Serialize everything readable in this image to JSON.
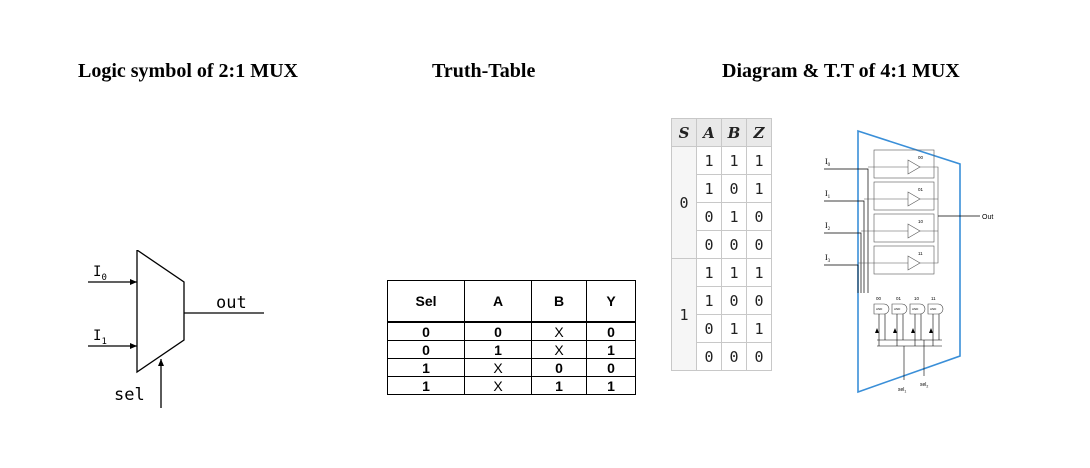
{
  "titles": {
    "logic_symbol": "Logic symbol of 2:1 MUX",
    "truth_table": "Truth-Table",
    "diagram_4to1": "Diagram & T.T of 4:1 MUX"
  },
  "mux21": {
    "input0": "I",
    "input0_sub": "0",
    "input1": "I",
    "input1_sub": "1",
    "select": "sel",
    "output": "out"
  },
  "truth_table_2to1": {
    "headers": [
      "Sel",
      "A",
      "B",
      "Y"
    ],
    "rows": [
      [
        "0",
        "0",
        "X",
        "0"
      ],
      [
        "0",
        "1",
        "X",
        "1"
      ],
      [
        "1",
        "X",
        "0",
        "0"
      ],
      [
        "1",
        "X",
        "1",
        "1"
      ]
    ]
  },
  "truth_table_4to1": {
    "headers": [
      "S",
      "A",
      "B",
      "Z"
    ],
    "groups": [
      {
        "s": "0",
        "rows": [
          [
            "1",
            "1",
            "1"
          ],
          [
            "1",
            "0",
            "1"
          ],
          [
            "0",
            "1",
            "0"
          ],
          [
            "0",
            "0",
            "0"
          ]
        ]
      },
      {
        "s": "1",
        "rows": [
          [
            "1",
            "1",
            "1"
          ],
          [
            "1",
            "0",
            "0"
          ],
          [
            "0",
            "1",
            "1"
          ],
          [
            "0",
            "0",
            "0"
          ]
        ]
      }
    ]
  },
  "mux41": {
    "inputs": [
      "I0",
      "I1",
      "I2",
      "I3"
    ],
    "input_letter": "I",
    "input_subs": [
      "0",
      "1",
      "2",
      "3"
    ],
    "codes": [
      "00",
      "01",
      "10",
      "11"
    ],
    "output": "Out",
    "and_label": "AND",
    "select_letter": "sel",
    "select_subs": [
      "1",
      "2"
    ],
    "frame_color": "#3a8fd8"
  }
}
